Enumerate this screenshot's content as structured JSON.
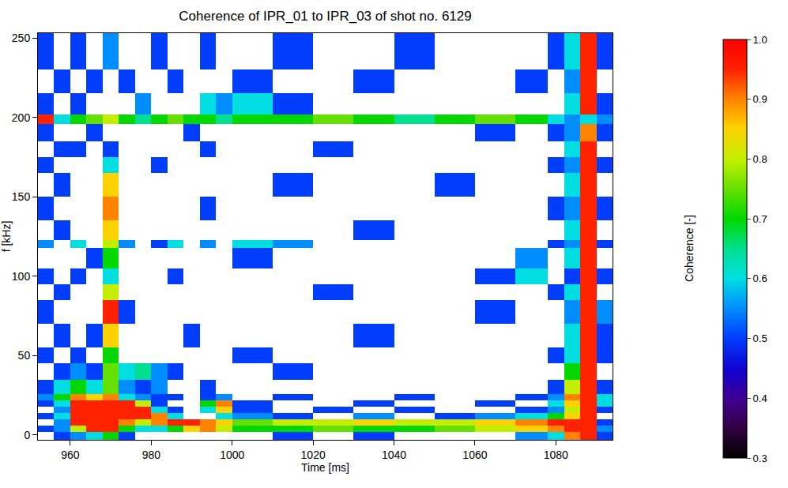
{
  "chart_data": {
    "type": "heatmap",
    "title": "Coherence of IPR_01 to IPR_03 of shot no. 6129",
    "x_label": "Time [ms]",
    "y_label": "f [kHz]",
    "xlim": [
      952,
      1094
    ],
    "ylim": [
      -3,
      253
    ],
    "xticks": [
      960,
      980,
      1000,
      1020,
      1040,
      1060,
      1080
    ],
    "yticks": [
      0,
      50,
      100,
      150,
      200,
      250
    ],
    "grid": false,
    "x_edges": [
      952,
      956,
      960,
      964,
      968,
      972,
      976,
      980,
      984,
      988,
      992,
      996,
      1000,
      1010,
      1020,
      1030,
      1040,
      1050,
      1060,
      1070,
      1078,
      1082,
      1086,
      1090,
      1094
    ],
    "y_edges": [
      -3,
      2,
      6,
      10,
      14,
      18,
      22,
      26,
      35,
      45,
      55,
      70,
      85,
      95,
      105,
      118,
      123,
      135,
      150,
      165,
      175,
      185,
      196,
      202,
      215,
      230,
      253
    ],
    "cells": [
      [
        null,
        0.5,
        0.55,
        0.6,
        0.7,
        0.5,
        null,
        null,
        null,
        null,
        null,
        null,
        null,
        0.5,
        null,
        0.5,
        null,
        null,
        null,
        0.55,
        0.6,
        0.9,
        0.95,
        0.5
      ],
      [
        0.5,
        0.55,
        0.8,
        0.95,
        0.95,
        0.7,
        0.6,
        0.6,
        0.7,
        0.85,
        0.9,
        0.8,
        0.7,
        0.7,
        0.75,
        0.7,
        0.7,
        0.75,
        0.8,
        0.85,
        0.9,
        0.95,
        0.95,
        0.55
      ],
      [
        null,
        0.55,
        0.95,
        0.95,
        0.95,
        0.9,
        0.8,
        0.9,
        0.95,
        0.95,
        0.9,
        0.85,
        0.75,
        0.8,
        0.8,
        0.85,
        0.8,
        0.8,
        0.85,
        0.9,
        0.95,
        0.95,
        0.95,
        0.5
      ],
      [
        0.5,
        0.6,
        0.95,
        0.95,
        0.95,
        0.95,
        0.95,
        0.9,
        0.6,
        null,
        null,
        0.6,
        0.55,
        0.5,
        null,
        0.55,
        null,
        0.5,
        0.55,
        0.6,
        0.7,
        0.85,
        0.95,
        null
      ],
      [
        null,
        0.55,
        0.95,
        0.95,
        0.95,
        0.95,
        0.95,
        0.6,
        0.5,
        null,
        0.6,
        0.85,
        0.5,
        null,
        0.5,
        null,
        0.5,
        null,
        null,
        0.5,
        0.55,
        0.8,
        0.95,
        0.5
      ],
      [
        0.5,
        0.6,
        0.95,
        0.95,
        0.95,
        0.95,
        0.8,
        0.5,
        null,
        null,
        0.7,
        0.9,
        0.5,
        null,
        null,
        0.5,
        null,
        null,
        0.5,
        null,
        0.6,
        0.85,
        0.95,
        0.6
      ],
      [
        0.55,
        0.7,
        0.9,
        0.85,
        0.9,
        0.6,
        0.55,
        0.5,
        0.5,
        null,
        0.5,
        0.55,
        null,
        0.5,
        null,
        null,
        0.5,
        null,
        null,
        0.5,
        0.55,
        0.9,
        0.95,
        0.6
      ],
      [
        0.5,
        0.6,
        0.7,
        0.6,
        0.75,
        0.55,
        0.5,
        0.55,
        null,
        null,
        0.5,
        null,
        null,
        null,
        null,
        null,
        null,
        null,
        null,
        null,
        0.5,
        0.8,
        0.95,
        0.5
      ],
      [
        null,
        0.5,
        0.55,
        0.5,
        0.75,
        0.6,
        0.65,
        0.55,
        0.5,
        null,
        null,
        null,
        null,
        0.5,
        null,
        null,
        null,
        null,
        null,
        null,
        null,
        0.7,
        0.95,
        null
      ],
      [
        0.5,
        null,
        0.5,
        null,
        0.7,
        null,
        null,
        null,
        null,
        null,
        null,
        null,
        0.5,
        null,
        null,
        null,
        null,
        null,
        null,
        null,
        0.5,
        0.6,
        0.95,
        0.5
      ],
      [
        null,
        0.5,
        null,
        0.5,
        0.85,
        null,
        null,
        null,
        null,
        0.5,
        null,
        null,
        null,
        null,
        null,
        0.5,
        null,
        null,
        null,
        null,
        null,
        0.6,
        0.95,
        0.5
      ],
      [
        0.5,
        null,
        null,
        null,
        0.95,
        0.5,
        null,
        null,
        null,
        null,
        null,
        null,
        null,
        null,
        null,
        null,
        null,
        null,
        0.5,
        null,
        null,
        0.55,
        0.95,
        0.55
      ],
      [
        null,
        0.5,
        null,
        null,
        0.8,
        null,
        null,
        null,
        null,
        null,
        null,
        null,
        null,
        null,
        0.5,
        null,
        null,
        null,
        null,
        null,
        0.5,
        0.6,
        0.95,
        null
      ],
      [
        0.5,
        null,
        0.5,
        null,
        0.6,
        null,
        null,
        null,
        0.5,
        null,
        null,
        null,
        null,
        null,
        null,
        null,
        null,
        null,
        0.5,
        0.6,
        null,
        0.5,
        0.95,
        0.5
      ],
      [
        null,
        null,
        null,
        0.5,
        0.7,
        null,
        null,
        null,
        null,
        null,
        null,
        null,
        0.5,
        null,
        null,
        null,
        null,
        null,
        null,
        0.55,
        null,
        0.6,
        0.95,
        null
      ],
      [
        0.55,
        null,
        0.6,
        null,
        0.8,
        0.55,
        null,
        0.5,
        0.6,
        null,
        0.55,
        null,
        0.6,
        0.55,
        null,
        null,
        null,
        null,
        null,
        null,
        0.5,
        0.55,
        0.95,
        0.5
      ],
      [
        null,
        0.5,
        null,
        null,
        0.85,
        null,
        null,
        null,
        null,
        null,
        null,
        null,
        null,
        null,
        null,
        0.5,
        null,
        null,
        null,
        null,
        null,
        0.6,
        0.95,
        null
      ],
      [
        0.5,
        null,
        null,
        null,
        0.9,
        null,
        null,
        null,
        null,
        null,
        0.5,
        null,
        null,
        null,
        null,
        null,
        null,
        null,
        null,
        null,
        0.5,
        0.55,
        0.95,
        0.5
      ],
      [
        null,
        0.5,
        null,
        null,
        0.85,
        null,
        null,
        null,
        null,
        null,
        null,
        null,
        null,
        0.5,
        null,
        null,
        null,
        0.5,
        null,
        null,
        null,
        0.6,
        0.95,
        null
      ],
      [
        0.5,
        null,
        null,
        null,
        0.6,
        null,
        null,
        0.5,
        null,
        null,
        null,
        null,
        null,
        null,
        null,
        null,
        null,
        null,
        null,
        null,
        0.5,
        0.55,
        0.95,
        0.5
      ],
      [
        null,
        0.5,
        0.5,
        null,
        0.5,
        null,
        null,
        null,
        null,
        null,
        0.5,
        null,
        null,
        null,
        0.5,
        null,
        null,
        null,
        null,
        null,
        null,
        0.6,
        0.95,
        null
      ],
      [
        0.5,
        null,
        null,
        0.5,
        null,
        null,
        null,
        null,
        null,
        0.5,
        null,
        null,
        null,
        null,
        null,
        null,
        null,
        null,
        0.5,
        null,
        0.5,
        0.55,
        0.9,
        0.5
      ],
      [
        0.95,
        0.6,
        0.7,
        0.75,
        0.8,
        0.7,
        0.65,
        0.7,
        0.75,
        0.7,
        0.7,
        0.65,
        0.7,
        0.7,
        0.75,
        0.7,
        0.65,
        0.7,
        0.75,
        0.7,
        0.6,
        0.55,
        0.6,
        0.55
      ],
      [
        0.5,
        null,
        0.5,
        null,
        null,
        null,
        0.55,
        null,
        null,
        null,
        0.6,
        0.55,
        0.6,
        0.5,
        null,
        null,
        null,
        null,
        null,
        null,
        null,
        0.6,
        0.95,
        0.5
      ],
      [
        null,
        0.5,
        null,
        0.5,
        null,
        0.5,
        null,
        null,
        0.5,
        null,
        null,
        null,
        0.5,
        null,
        null,
        0.5,
        null,
        null,
        null,
        0.5,
        null,
        0.55,
        0.95,
        null
      ],
      [
        0.5,
        null,
        0.5,
        null,
        0.55,
        null,
        null,
        0.5,
        null,
        null,
        0.5,
        null,
        null,
        0.5,
        null,
        null,
        0.5,
        null,
        null,
        null,
        0.5,
        0.6,
        0.95,
        0.5
      ]
    ],
    "colorbar": {
      "title": "Coherence [-]",
      "range": [
        0.3,
        1.0
      ],
      "ticks": [
        0.3,
        0.4,
        0.5,
        0.6,
        0.7,
        0.8,
        0.9,
        {
          "value": 1.0,
          "label": "1.0"
        }
      ]
    }
  }
}
